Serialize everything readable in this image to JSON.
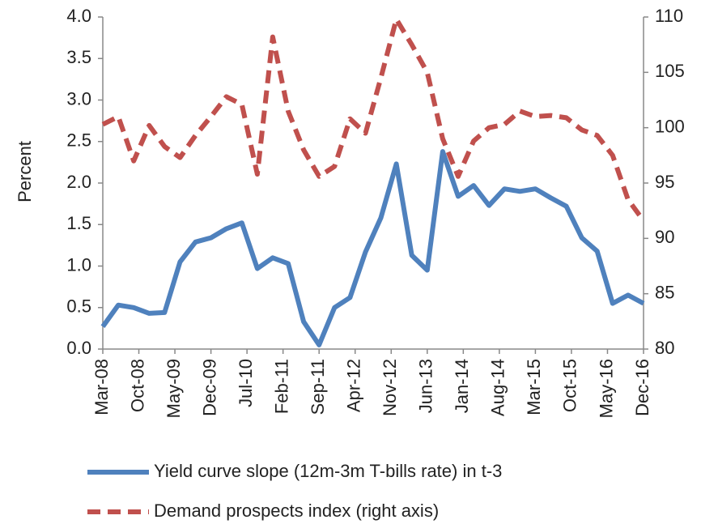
{
  "chart_data": {
    "type": "line",
    "y_label": "Percent",
    "x": [
      "Mar-08",
      "Jun-08",
      "Sep-08",
      "Dec-08",
      "Mar-09",
      "Jun-09",
      "Sep-09",
      "Dec-09",
      "Mar-10",
      "Jun-10",
      "Sep-10",
      "Dec-10",
      "Mar-11",
      "Jun-11",
      "Sep-11",
      "Dec-11",
      "Mar-12",
      "Jun-12",
      "Sep-12",
      "Dec-12",
      "Mar-13",
      "Jun-13",
      "Sep-13",
      "Dec-13",
      "Mar-14",
      "Jun-14",
      "Sep-14",
      "Dec-14",
      "Mar-15",
      "Jun-15",
      "Sep-15",
      "Dec-15",
      "Mar-16",
      "Jun-16",
      "Sep-16",
      "Dec-16"
    ],
    "xticks": [
      "Mar-08",
      "Oct-08",
      "May-09",
      "Dec-09",
      "Jul-10",
      "Feb-11",
      "Sep-11",
      "Apr-12",
      "Nov-12",
      "Jun-13",
      "Jan-14",
      "Aug-14",
      "Mar-15",
      "Oct-15",
      "May-16",
      "Dec-16"
    ],
    "ylim": [
      0,
      4
    ],
    "yticks": [
      {
        "value": 0,
        "label": "0.0"
      },
      {
        "value": 0.5,
        "label": "0.5"
      },
      {
        "value": 1,
        "label": "1.0"
      },
      {
        "value": 1.5,
        "label": "1.5"
      },
      {
        "value": 2,
        "label": "2.0"
      },
      {
        "value": 2.5,
        "label": "2.5"
      },
      {
        "value": 3,
        "label": "3.0"
      },
      {
        "value": 3.5,
        "label": "3.5"
      },
      {
        "value": 4,
        "label": "4.0"
      }
    ],
    "y2lim": [
      80,
      110
    ],
    "y2ticks": [
      80,
      85,
      90,
      95,
      100,
      105,
      110
    ],
    "grid": false,
    "series": [
      {
        "name": "Yield curve slope (12m-3m T-bills rate) in t-3",
        "color": "#4F81BD",
        "dash": false,
        "values": [
          0.27,
          0.53,
          0.5,
          0.43,
          0.44,
          1.05,
          1.29,
          1.34,
          1.45,
          1.52,
          0.97,
          1.1,
          1.03,
          0.33,
          0.05,
          0.5,
          0.62,
          1.17,
          1.58,
          2.23,
          1.13,
          0.95,
          2.38,
          1.84,
          1.97,
          1.73,
          1.93,
          1.9,
          1.93,
          1.82,
          1.72,
          1.34,
          1.18,
          0.55,
          0.65,
          0.55
        ]
      },
      {
        "name": "Demand prospects index (right axis)",
        "color": "#C0504D",
        "dash": true,
        "axis": "y2",
        "values": [
          100.3,
          101,
          97,
          100.2,
          98.3,
          97.3,
          99.3,
          101,
          102.8,
          102.1,
          95.8,
          108.2,
          101.5,
          98,
          95.6,
          96.5,
          100.8,
          99.5,
          104.5,
          109.8,
          107.5,
          105,
          99,
          95.6,
          98.8,
          100,
          100.3,
          101.5,
          101,
          101.1,
          100.9,
          99.8,
          99.3,
          97.5,
          93.5,
          91.6
        ]
      }
    ]
  }
}
